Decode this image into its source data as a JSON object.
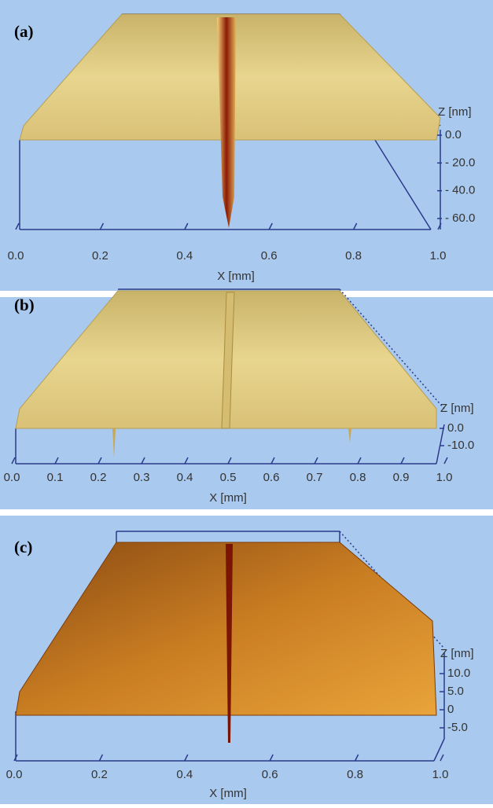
{
  "panels": [
    {
      "label": "(a)",
      "x_label": "X [mm]",
      "z_label": "Z [nm]",
      "xticks": [
        {
          "value": 0,
          "label": "0.0"
        },
        0.2,
        0.4,
        0.6,
        0.8,
        {
          "value": 1,
          "label": "1.0"
        }
      ],
      "zticks": [
        {
          "value": 0,
          "label": "0.0"
        },
        {
          "value": -20,
          "label": "- 20.0"
        },
        {
          "value": -40,
          "label": "- 40.0"
        },
        {
          "value": -60,
          "label": "- 60.0"
        }
      ]
    },
    {
      "label": "(b)",
      "x_label": "X [mm]",
      "z_label": "Z [nm]",
      "xticks": [
        {
          "value": 0,
          "label": "0.0"
        },
        0.1,
        0.2,
        0.3,
        0.4,
        0.5,
        0.6,
        0.7,
        0.8,
        0.9,
        {
          "value": 1,
          "label": "1.0"
        }
      ],
      "zticks": [
        {
          "value": 0,
          "label": "0.0"
        },
        {
          "value": -10,
          "label": "-10.0"
        }
      ]
    },
    {
      "label": "(c)",
      "x_label": "X [mm]",
      "z_label": "Z [nm]",
      "xticks": [
        {
          "value": 0,
          "label": "0.0"
        },
        0.2,
        0.4,
        0.6,
        0.8,
        {
          "value": 1,
          "label": "1.0"
        }
      ],
      "zticks": [
        {
          "value": 10,
          "label": "10.0"
        },
        {
          "value": 5,
          "label": "5.0"
        },
        0,
        {
          "value": -5,
          "label": "-5.0"
        }
      ]
    }
  ]
}
